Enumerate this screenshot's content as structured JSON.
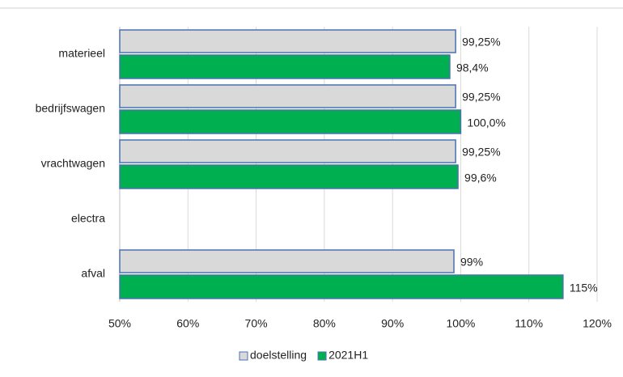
{
  "chart_data": {
    "type": "bar",
    "orientation": "horizontal",
    "categories": [
      "materieel",
      "bedrijfswagen",
      "vrachtwagen",
      "electra",
      "afval"
    ],
    "series": [
      {
        "name": "doelstelling",
        "color": "#d9d9d9",
        "edge_color": "#4a72b0",
        "values": [
          99.25,
          99.25,
          99.25,
          null,
          99
        ],
        "value_labels": [
          "99,25%",
          "99,25%",
          "99,25%",
          null,
          "99%"
        ]
      },
      {
        "name": "2021H1",
        "color": "#00b050",
        "edge_color": "#4a72b0",
        "values": [
          98.4,
          100.0,
          99.6,
          null,
          115
        ],
        "value_labels": [
          "98,4%",
          "100,0%",
          "99,6%",
          null,
          "115%"
        ]
      }
    ],
    "xlim": [
      50,
      120
    ],
    "xticks": [
      {
        "value": 50,
        "label": "50%"
      },
      {
        "value": 60,
        "label": "60%"
      },
      {
        "value": 70,
        "label": "70%"
      },
      {
        "value": 80,
        "label": "80%"
      },
      {
        "value": 90,
        "label": "90%"
      },
      {
        "value": 100,
        "label": "100%"
      },
      {
        "value": 110,
        "label": "110%"
      },
      {
        "value": 120,
        "label": "120%"
      }
    ],
    "grid": true,
    "legend": "bottom"
  }
}
